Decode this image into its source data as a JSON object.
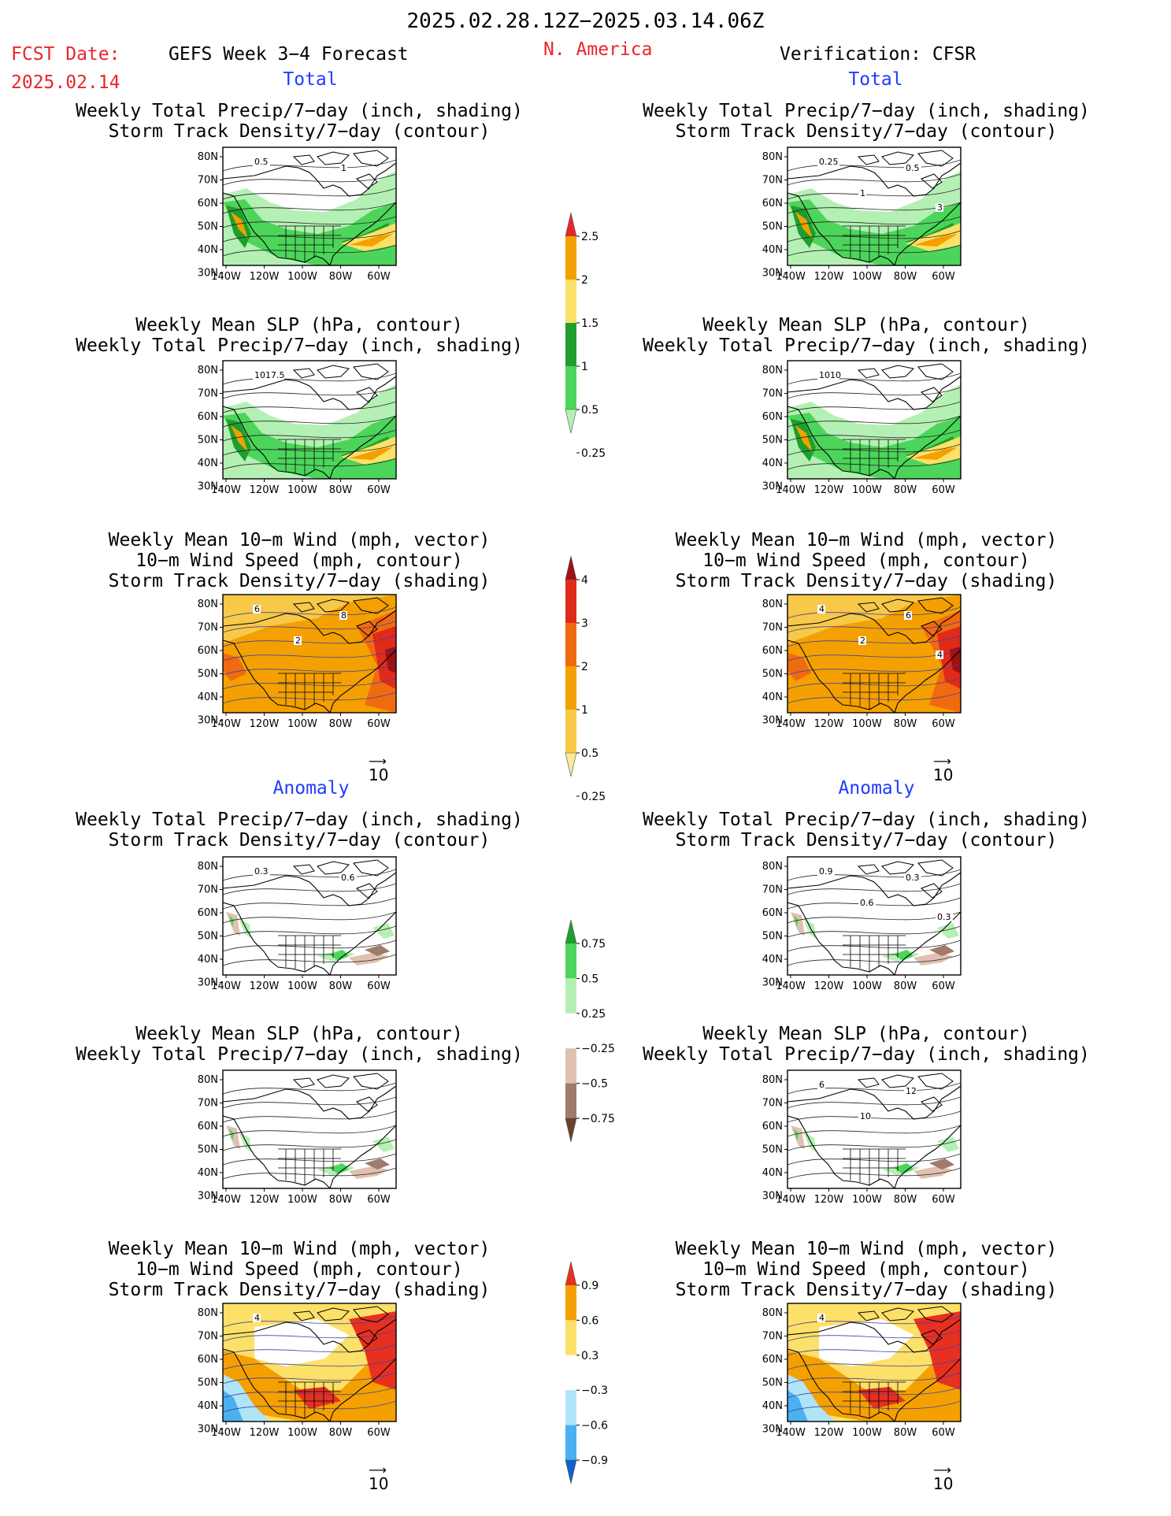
{
  "header": {
    "period": "2025.02.28.12Z−2025.03.14.06Z",
    "fcst_label": "FCST Date:",
    "fcst_date": "2025.02.14",
    "product": "GEFS Week 3−4 Forecast",
    "region": "N. America",
    "verification": "Verification: CFSR"
  },
  "section_labels": {
    "total_left": "Total",
    "total_right": "Total",
    "anomaly_left": "Anomaly",
    "anomaly_right": "Anomaly"
  },
  "panel_titles": {
    "precip_storm": [
      "Weekly Total Precip/7−day (inch, shading)",
      "Storm Track Density/7−day (contour)"
    ],
    "slp_precip": [
      "Weekly Mean SLP (hPa, contour)",
      "Weekly Total Precip/7−day (inch, shading)"
    ],
    "wind_storm": [
      "Weekly Mean 10−m Wind (mph, vector)",
      "10−m Wind Speed (mph, contour)",
      "Storm Track Density/7−day (shading)"
    ]
  },
  "axes": {
    "lat_labels": [
      "80N",
      "70N",
      "60N",
      "50N",
      "40N",
      "30N"
    ],
    "lon_labels": [
      "140W",
      "120W",
      "100W",
      "80W",
      "60W"
    ]
  },
  "vector_ref": "10",
  "colorbars": {
    "precip_total": {
      "labels": [
        "2.5",
        "2",
        "1.5",
        "1",
        "0.5",
        "0.25"
      ],
      "colors": [
        "#e8262a",
        "#f4a000",
        "#fde068",
        "#1e9e2e",
        "#4cd55a",
        "#b4f0b4"
      ]
    },
    "storm_total": {
      "labels": [
        "4",
        "3",
        "2",
        "1",
        "0.5",
        "0.25"
      ],
      "colors": [
        "#a01010",
        "#e02a1a",
        "#f06a10",
        "#f4a000",
        "#f8c848",
        "#fde896"
      ]
    },
    "precip_anom": {
      "labels": [
        "0.75",
        "0.5",
        "0.25",
        "−0.25",
        "−0.5",
        "−0.75"
      ],
      "colors": [
        "#1e9e2e",
        "#4cd55a",
        "#b4f0b4",
        "#ffffff",
        "#e0c0b0",
        "#a07a6a",
        "#6a4030"
      ]
    },
    "storm_anom": {
      "labels": [
        "0.9",
        "0.6",
        "0.3",
        "−0.3",
        "−0.6",
        "−0.9"
      ],
      "colors": [
        "#e83020",
        "#f4a000",
        "#fde068",
        "#ffffff",
        "#b0e4f8",
        "#4ab0f0",
        "#1060d0"
      ]
    }
  },
  "panels": {
    "left_total_precip": {
      "labels": [
        "0.5",
        "1"
      ],
      "shading": "precip"
    },
    "right_total_precip": {
      "labels": [
        "0.25",
        "0.5",
        "1",
        "3"
      ],
      "shading": "precip"
    },
    "left_total_slp": {
      "labels": [
        "1017.5"
      ],
      "shading": "precip"
    },
    "right_total_slp": {
      "labels": [
        "1010"
      ],
      "shading": "precip"
    },
    "left_total_wind": {
      "labels": [
        "6",
        "8",
        "2"
      ],
      "shading": "storm"
    },
    "right_total_wind": {
      "labels": [
        "4",
        "6",
        "2",
        "4"
      ],
      "shading": "storm"
    },
    "left_anom_precip": {
      "labels": [
        "0.3",
        "0.6"
      ],
      "shading": "anom"
    },
    "right_anom_precip": {
      "labels": [
        "0.9",
        "0.3",
        "0.6",
        "0.3"
      ],
      "shading": "anom"
    },
    "left_anom_slp": {
      "labels": [],
      "shading": "anom"
    },
    "right_anom_slp": {
      "labels": [
        "6",
        "12",
        "10"
      ],
      "shading": "anom"
    },
    "left_anom_wind": {
      "labels": [
        "4"
      ],
      "shading": "anomstorm"
    },
    "right_anom_wind": {
      "labels": [
        "4"
      ],
      "shading": "anomstorm"
    }
  }
}
